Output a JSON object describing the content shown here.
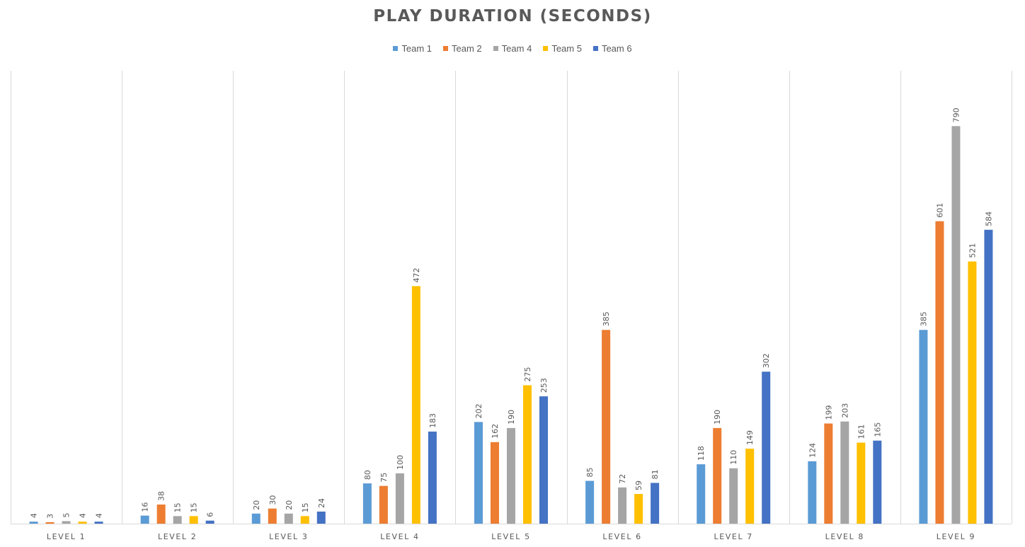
{
  "chart_data": {
    "type": "bar",
    "title": "PLAY DURATION (SECONDS)",
    "xlabel": "",
    "ylabel": "",
    "ylim": [
      0,
      900
    ],
    "grid": "vertical category separators",
    "legend_position": "top",
    "categories": [
      "LEVEL 1",
      "LEVEL 2",
      "LEVEL 3",
      "LEVEL 4",
      "LEVEL 5",
      "LEVEL 6",
      "LEVEL 7",
      "LEVEL 8",
      "LEVEL 9"
    ],
    "series": [
      {
        "name": "Team 1",
        "color": "#5B9BD5",
        "values": [
          4,
          16,
          20,
          80,
          202,
          85,
          118,
          124,
          385
        ]
      },
      {
        "name": "Team 2",
        "color": "#ED7D31",
        "values": [
          3,
          38,
          30,
          75,
          162,
          385,
          190,
          199,
          601
        ]
      },
      {
        "name": "Team 4",
        "color": "#A5A5A5",
        "values": [
          5,
          15,
          20,
          100,
          190,
          72,
          110,
          203,
          790
        ]
      },
      {
        "name": "Team 5",
        "color": "#FFC000",
        "values": [
          4,
          15,
          15,
          472,
          275,
          59,
          149,
          161,
          521
        ]
      },
      {
        "name": "Team 6",
        "color": "#4472C4",
        "values": [
          4,
          6,
          24,
          183,
          253,
          81,
          302,
          165,
          584
        ]
      }
    ]
  }
}
